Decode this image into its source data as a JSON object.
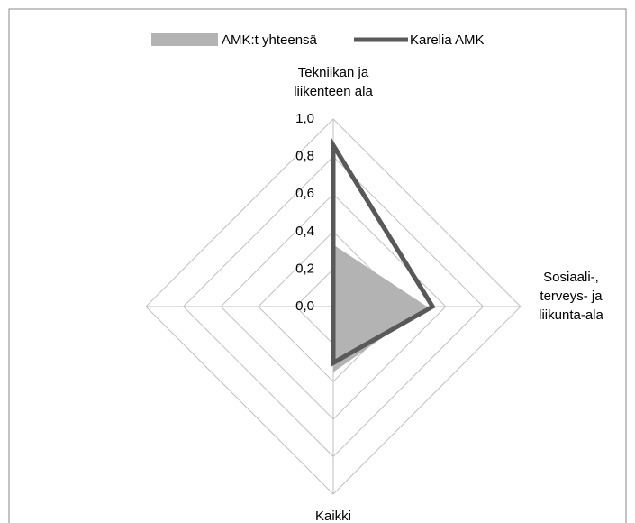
{
  "chart_data": {
    "type": "radar",
    "categories": [
      "Tekniikan ja liikenteen ala",
      "Sosiaali-, terveys- ja liikunta-ala",
      "Kaikki",
      null
    ],
    "series": [
      {
        "name": "AMK:t yhteensä",
        "color": "#b3b3b3",
        "values": [
          0.33,
          0.5,
          0.35,
          0
        ]
      },
      {
        "name": "Karelia AMK",
        "color": "#595959",
        "values": [
          0.86,
          0.53,
          0.3,
          0
        ]
      }
    ],
    "ylim": [
      0,
      1
    ],
    "yticks": [
      {
        "value": 0,
        "label": "0,0"
      },
      {
        "value": 0.2,
        "label": "0,2"
      },
      {
        "value": 0.4,
        "label": "0,4"
      },
      {
        "value": 0.6,
        "label": "0,6"
      },
      {
        "value": 0.8,
        "label": "0,8"
      },
      {
        "value": 1,
        "label": "1,0"
      }
    ],
    "grid": true,
    "legend": "top"
  }
}
